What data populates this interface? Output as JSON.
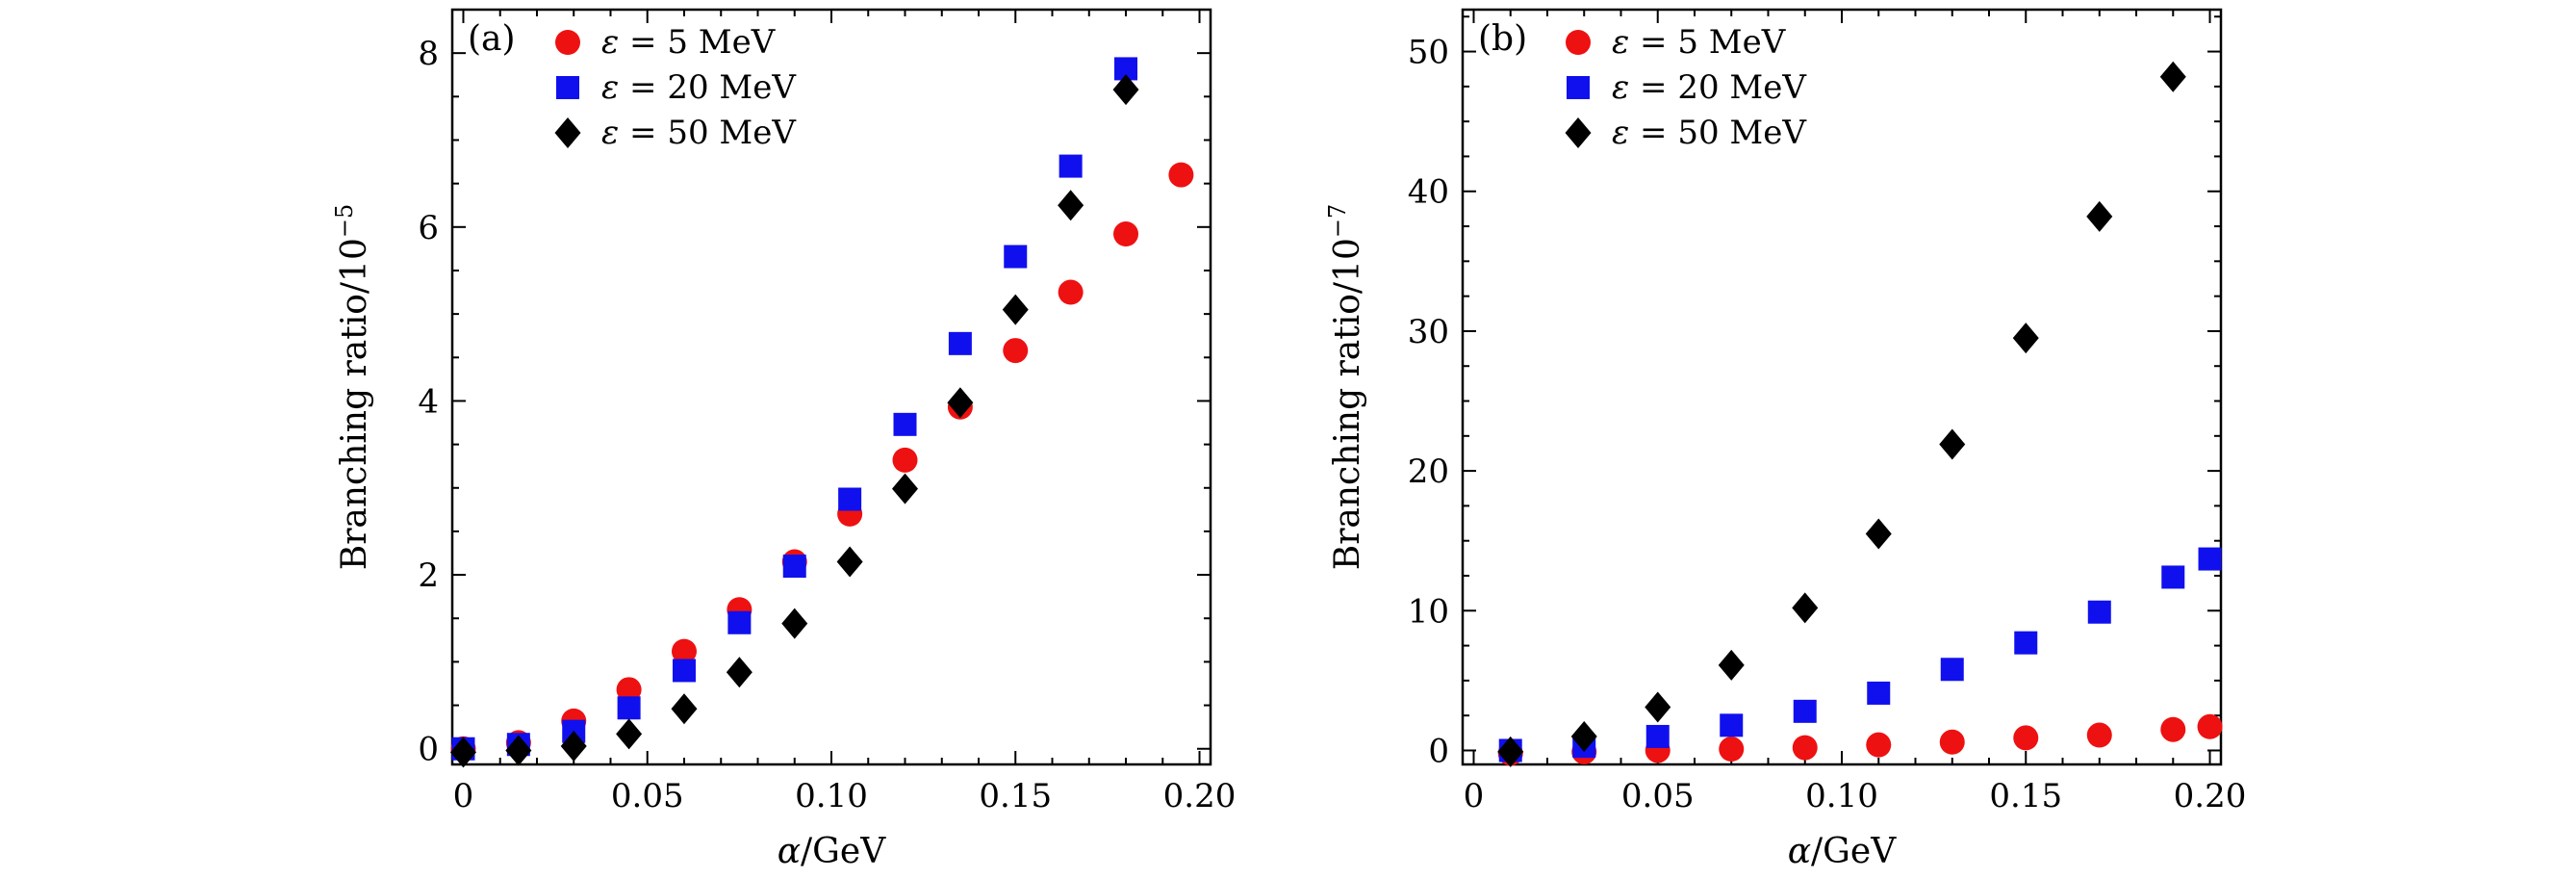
{
  "colors": {
    "red": "#ee1111",
    "blue": "#1010ee",
    "black": "#000000"
  },
  "chart_data": [
    {
      "type": "scatter",
      "panel_label": "(a)",
      "xlabel_var": "α",
      "xlabel_unit": "/GeV",
      "ylabel_text": "Branching ratio/10",
      "ylabel_exp": "−5",
      "xlim": [
        -0.003,
        0.203
      ],
      "ylim": [
        -0.18,
        8.5
      ],
      "xticks": [
        0,
        0.05,
        0.1,
        0.15,
        0.2
      ],
      "xtick_labels": [
        "0",
        "0.05",
        "0.10",
        "0.15",
        "0.20"
      ],
      "yticks": [
        0,
        2,
        4,
        6,
        8
      ],
      "ytick_labels": [
        "0",
        "2",
        "4",
        "6",
        "8"
      ],
      "legend_position": "top-left",
      "series": [
        {
          "name": "ε = 5 MeV",
          "legend_var": "ε",
          "legend_val": "= 5 MeV",
          "marker": "circle",
          "color": "#ee1111",
          "x": [
            0,
            0.015,
            0.03,
            0.045,
            0.06,
            0.075,
            0.09,
            0.105,
            0.12,
            0.135,
            0.15,
            0.165,
            0.18,
            0.195
          ],
          "y": [
            0,
            0.07,
            0.32,
            0.68,
            1.12,
            1.6,
            2.15,
            2.7,
            3.32,
            3.93,
            4.58,
            5.25,
            5.92,
            6.6
          ]
        },
        {
          "name": "ε = 20 MeV",
          "legend_var": "ε",
          "legend_val": "= 20 MeV",
          "marker": "square",
          "color": "#1010ee",
          "x": [
            0,
            0.015,
            0.03,
            0.045,
            0.06,
            0.075,
            0.09,
            0.105,
            0.12,
            0.135,
            0.15,
            0.165,
            0.18
          ],
          "y": [
            0,
            0.05,
            0.2,
            0.47,
            0.9,
            1.45,
            2.1,
            2.87,
            3.73,
            4.66,
            5.66,
            6.7,
            7.82
          ]
        },
        {
          "name": "ε = 50 MeV",
          "legend_var": "ε",
          "legend_val": "= 50 MeV",
          "marker": "diamond",
          "color": "#000000",
          "x": [
            0,
            0.015,
            0.03,
            0.045,
            0.06,
            0.075,
            0.09,
            0.105,
            0.12,
            0.135,
            0.15,
            0.165,
            0.18
          ],
          "y": [
            -0.04,
            -0.02,
            0.03,
            0.17,
            0.46,
            0.88,
            1.44,
            2.15,
            2.99,
            3.98,
            5.05,
            6.25,
            7.58
          ]
        }
      ]
    },
    {
      "type": "scatter",
      "panel_label": "(b)",
      "xlabel_var": "α",
      "xlabel_unit": "/GeV",
      "ylabel_text": "Branching ratio/10",
      "ylabel_exp": "−7",
      "xlim": [
        -0.003,
        0.203
      ],
      "ylim": [
        -1,
        53
      ],
      "xticks": [
        0,
        0.05,
        0.1,
        0.15,
        0.2
      ],
      "xtick_labels": [
        "0",
        "0.05",
        "0.10",
        "0.15",
        "0.20"
      ],
      "yticks": [
        0,
        10,
        20,
        30,
        40,
        50
      ],
      "ytick_labels": [
        "0",
        "10",
        "20",
        "30",
        "40",
        "50"
      ],
      "legend_position": "top-left",
      "series": [
        {
          "name": "ε = 5 MeV",
          "legend_var": "ε",
          "legend_val": "= 5 MeV",
          "marker": "circle",
          "color": "#ee1111",
          "x": [
            0.01,
            0.03,
            0.05,
            0.07,
            0.09,
            0.11,
            0.13,
            0.15,
            0.17,
            0.19,
            0.2
          ],
          "y": [
            -0.2,
            -0.1,
            0.0,
            0.1,
            0.2,
            0.4,
            0.6,
            0.9,
            1.1,
            1.5,
            1.7
          ]
        },
        {
          "name": "ε = 20 MeV",
          "legend_var": "ε",
          "legend_val": "= 20 MeV",
          "marker": "square",
          "color": "#1010ee",
          "x": [
            0.01,
            0.03,
            0.05,
            0.07,
            0.09,
            0.11,
            0.13,
            0.15,
            0.17,
            0.19,
            0.2
          ],
          "y": [
            0.0,
            0.3,
            1.0,
            1.8,
            2.8,
            4.1,
            5.8,
            7.7,
            9.9,
            12.4,
            13.7
          ]
        },
        {
          "name": "ε = 50 MeV",
          "legend_var": "ε",
          "legend_val": "= 50 MeV",
          "marker": "diamond",
          "color": "#000000",
          "x": [
            0.01,
            0.03,
            0.05,
            0.07,
            0.09,
            0.11,
            0.13,
            0.15,
            0.17,
            0.19
          ],
          "y": [
            -0.1,
            1.0,
            3.1,
            6.1,
            10.2,
            15.5,
            21.9,
            29.5,
            38.2,
            48.2
          ]
        }
      ]
    }
  ]
}
